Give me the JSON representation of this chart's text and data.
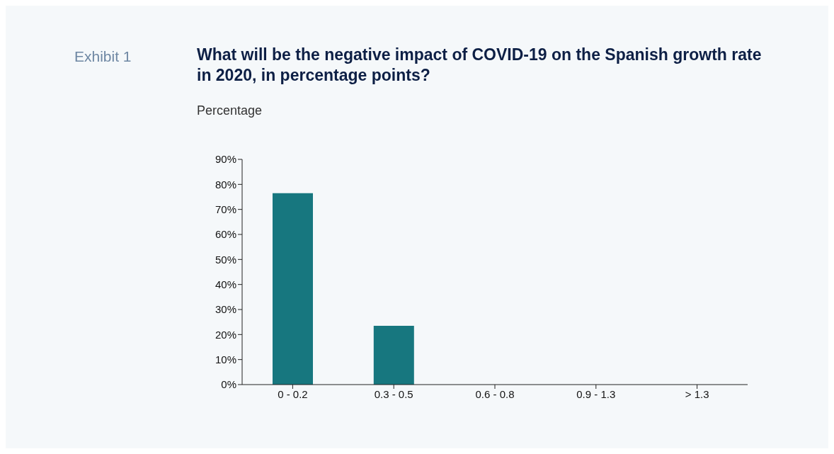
{
  "chart_data": {
    "type": "bar",
    "title": "What will be the negative impact of COVID-19 on the Spanish growth rate in 2020, in percentage points?",
    "ylabel": "Percentage",
    "annotations": [
      "Exhibit 1"
    ],
    "categories": [
      "0 - 0.2",
      "0.3 - 0.5",
      "0.6 - 0.8",
      "0.9 - 1.3",
      "> 1.3"
    ],
    "values": [
      76.5,
      23.5,
      0,
      0,
      0
    ],
    "color": "#17777f",
    "ylim": [
      0,
      90
    ],
    "yticks": [
      {
        "value": 0,
        "label": "0%"
      },
      {
        "value": 10,
        "label": "10%"
      },
      {
        "value": 20,
        "label": "20%"
      },
      {
        "value": 30,
        "label": "30%"
      },
      {
        "value": 40,
        "label": "40%"
      },
      {
        "value": 50,
        "label": "50%"
      },
      {
        "value": 60,
        "label": "60%"
      },
      {
        "value": 70,
        "label": "70%"
      },
      {
        "value": 80,
        "label": "80%"
      },
      {
        "value": 90,
        "label": "90%"
      }
    ],
    "grid": false,
    "legend": false
  }
}
